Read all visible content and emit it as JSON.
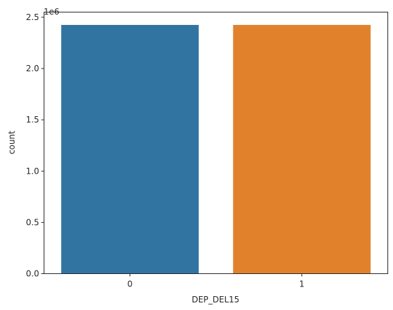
{
  "chart_data": {
    "type": "bar",
    "categories": [
      "0",
      "1"
    ],
    "values": [
      2425000,
      2425000
    ],
    "colors": [
      "#3274a1",
      "#e1812c"
    ],
    "xlabel": "DEP_DEL15",
    "ylabel": "count",
    "ylim": [
      0,
      2550000
    ],
    "y_offset_label": "1e6",
    "y_ticks": [
      {
        "value": 0,
        "label": "0.0"
      },
      {
        "value": 500000,
        "label": "0.5"
      },
      {
        "value": 1000000,
        "label": "1.0"
      },
      {
        "value": 1500000,
        "label": "1.5"
      },
      {
        "value": 2000000,
        "label": "2.0"
      },
      {
        "value": 2500000,
        "label": "2.5"
      }
    ],
    "grid": false,
    "legend": "none"
  }
}
